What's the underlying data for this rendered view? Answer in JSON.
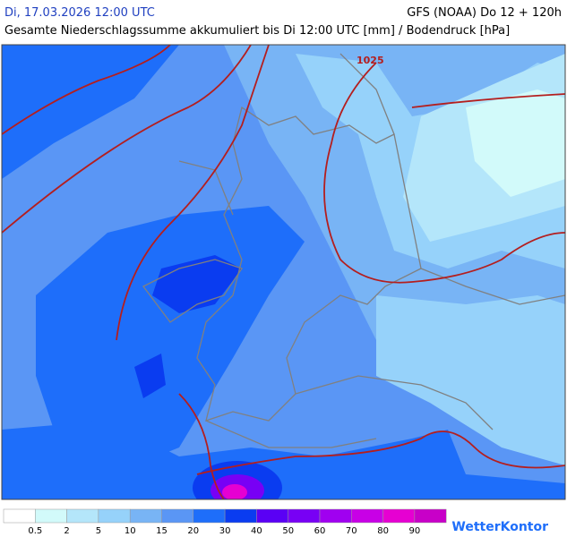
{
  "header": {
    "valid_time": "Di, 17.03.2026 12:00 UTC",
    "model_run": "GFS (NOAA) Do 12 + 120h",
    "subtitle": "Gesamte Niederschlagssumme akkumuliert bis Di 12:00 UTC [mm] / Bodendruck [hPa]"
  },
  "map": {
    "isobar_label": "1025"
  },
  "legend": {
    "colors": [
      "#ffffff",
      "#d2fafa",
      "#b4e6fa",
      "#96d2fa",
      "#78b4f5",
      "#5a96f5",
      "#1e6efa",
      "#0a3cf0",
      "#5a00f5",
      "#7800f5",
      "#a000f0",
      "#c800e6",
      "#e600d2",
      "#c800c8"
    ],
    "labels": [
      "0.5",
      "2",
      "5",
      "10",
      "15",
      "20",
      "30",
      "40",
      "50",
      "60",
      "70",
      "80",
      "90"
    ]
  },
  "logo": "WetterKontor"
}
